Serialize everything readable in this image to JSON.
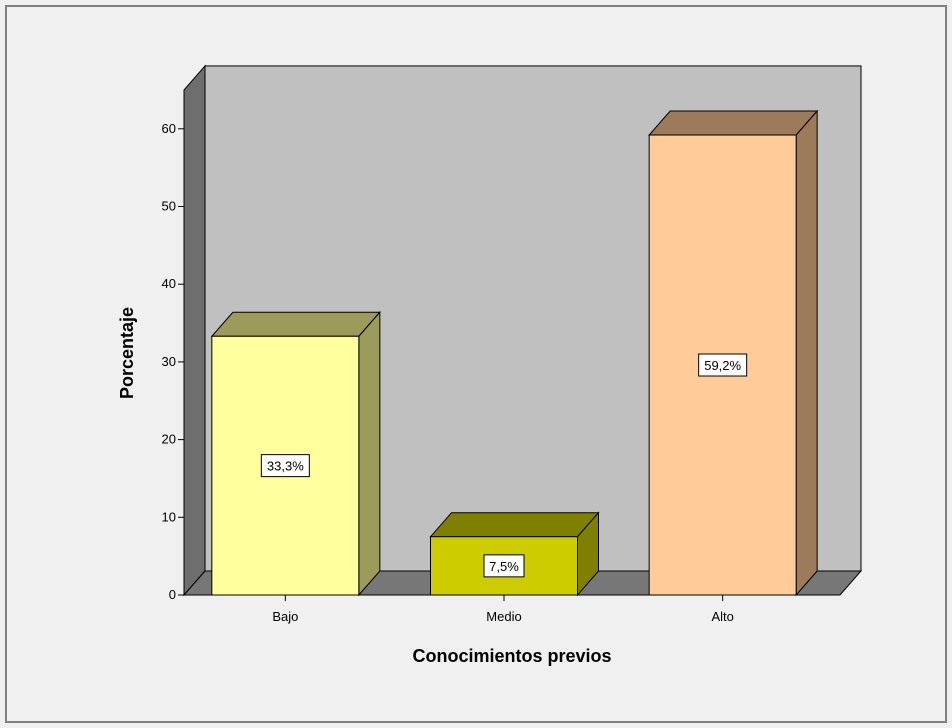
{
  "chart_data": {
    "type": "bar",
    "title": "",
    "xlabel": "Conocimientos previos",
    "ylabel": "Porcentaje",
    "categories": [
      "Bajo",
      "Medio",
      "Alto"
    ],
    "values": [
      33.3,
      7.5,
      59.2
    ],
    "data_labels": [
      "33,3%",
      "7,5%",
      "59,2%"
    ],
    "yticks": [
      0,
      10,
      20,
      30,
      40,
      50,
      60
    ],
    "ylim": [
      0,
      65
    ],
    "grid": false,
    "style": "3d",
    "bar_colors": [
      {
        "front": "#ffff9e",
        "top": "#9b9b5b",
        "side": "#9b9b5b"
      },
      {
        "front": "#cccc00",
        "top": "#808000",
        "side": "#808000"
      },
      {
        "front": "#ffcc99",
        "top": "#9c7a5a",
        "side": "#9c7a5a"
      }
    ],
    "plot_colors": {
      "wall": "#c0c0c0",
      "side_wall": "#6e6e6e",
      "floor": "#777777",
      "background": "#f0f0f0"
    }
  }
}
